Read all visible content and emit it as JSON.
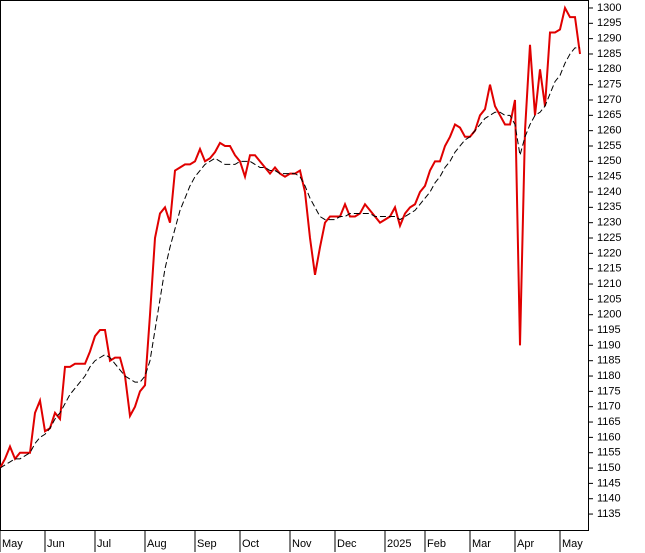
{
  "chart_data": {
    "type": "line",
    "categories": [
      "May",
      null,
      null,
      null,
      null,
      null,
      null,
      null,
      null,
      "Jun",
      null,
      null,
      null,
      null,
      null,
      null,
      null,
      null,
      null,
      "Jul",
      null,
      null,
      null,
      null,
      null,
      null,
      null,
      null,
      null,
      "Aug",
      null,
      null,
      null,
      null,
      null,
      null,
      null,
      null,
      null,
      "Sep",
      null,
      null,
      null,
      null,
      null,
      null,
      null,
      null,
      "Oct",
      null,
      null,
      null,
      null,
      null,
      null,
      null,
      null,
      null,
      "Nov",
      null,
      null,
      null,
      null,
      null,
      null,
      null,
      null,
      "Dec",
      null,
      null,
      null,
      null,
      null,
      null,
      null,
      null,
      null,
      "2025",
      null,
      null,
      null,
      null,
      null,
      null,
      null,
      "Feb",
      null,
      null,
      null,
      null,
      null,
      null,
      null,
      null,
      "Mar",
      null,
      null,
      null,
      null,
      null,
      null,
      null,
      null,
      "Apr",
      null,
      null,
      null,
      null,
      null,
      null,
      null,
      null,
      "May",
      null,
      null,
      null,
      null
    ],
    "series": [
      {
        "color": "#e00000",
        "values": [
          1150,
          1153,
          1157,
          1153,
          1155,
          1155,
          1155,
          1168,
          1172,
          1162,
          1163,
          1168,
          1166,
          1183,
          1183,
          1184,
          1184,
          1184,
          1188,
          1193,
          1195,
          1195,
          1185,
          1186,
          1186,
          1180,
          1167,
          1170,
          1175,
          1177,
          1200,
          1225,
          1233,
          1235,
          1230,
          1247,
          1248,
          1249,
          1249,
          1250,
          1254,
          1250,
          1251,
          1253,
          1256,
          1255,
          1255,
          1252,
          1250,
          1245,
          1252,
          1252,
          1250,
          1248,
          1246,
          1248,
          1246,
          1245,
          1246,
          1246,
          1247,
          1240,
          1225,
          1213,
          1222,
          1230,
          1232,
          1232,
          1232,
          1236,
          1232,
          1232,
          1233,
          1236,
          1234,
          1232,
          1230,
          1231,
          1232,
          1235,
          1229,
          1233,
          1235,
          1236,
          1240,
          1242,
          1247,
          1250,
          1250,
          1255,
          1258,
          1262,
          1261,
          1258,
          1258,
          1260,
          1265,
          1267,
          1275,
          1268,
          1265,
          1262,
          1262,
          1270,
          1190,
          1260,
          1288,
          1265,
          1280,
          1268,
          1292,
          1292,
          1293,
          1300,
          1297,
          1297,
          1285
        ]
      },
      {
        "color": "#000000",
        "dashed": true,
        "values": [
          1150,
          1151,
          1152,
          1153,
          1153,
          1154,
          1155,
          1158,
          1160,
          1161,
          1163,
          1166,
          1168,
          1171,
          1174,
          1176,
          1178,
          1180,
          1183,
          1185,
          1186,
          1187,
          1186,
          1184,
          1182,
          1180,
          1179,
          1178,
          1178,
          1180,
          1185,
          1195,
          1205,
          1215,
          1222,
          1228,
          1234,
          1238,
          1242,
          1245,
          1247,
          1249,
          1250,
          1251,
          1250,
          1249,
          1249,
          1249,
          1250,
          1250,
          1250,
          1249,
          1248,
          1248,
          1247,
          1247,
          1246,
          1246,
          1246,
          1246,
          1245,
          1242,
          1238,
          1235,
          1232,
          1231,
          1231,
          1231,
          1232,
          1232,
          1233,
          1233,
          1233,
          1233,
          1233,
          1232,
          1232,
          1232,
          1232,
          1232,
          1231,
          1232,
          1233,
          1234,
          1236,
          1238,
          1240,
          1243,
          1245,
          1248,
          1250,
          1253,
          1255,
          1257,
          1258,
          1260,
          1262,
          1264,
          1265,
          1266,
          1266,
          1265,
          1265,
          1262,
          1252,
          1258,
          1262,
          1265,
          1266,
          1268,
          1272,
          1276,
          1278,
          1282,
          1285,
          1287,
          1287
        ]
      }
    ],
    "ylim": [
      1129.8,
      1302.6
    ],
    "yticks": [
      1135,
      1140,
      1145,
      1150,
      1155,
      1160,
      1165,
      1170,
      1175,
      1180,
      1185,
      1190,
      1195,
      1200,
      1205,
      1210,
      1215,
      1220,
      1225,
      1230,
      1235,
      1240,
      1245,
      1250,
      1255,
      1260,
      1265,
      1270,
      1275,
      1280,
      1285,
      1290,
      1295,
      1300
    ]
  }
}
